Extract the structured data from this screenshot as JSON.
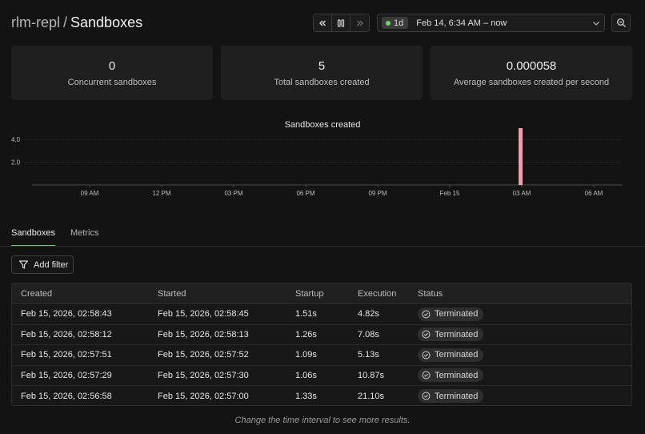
{
  "header": {
    "project": "rlm-repl",
    "separator": "/",
    "page_title": "Sandboxes"
  },
  "time_range": {
    "preset": "1d",
    "label": "Feb 14, 6:34 AM – now",
    "live_color": "#6dd66d"
  },
  "stats": [
    {
      "value": "0",
      "label": "Concurrent sandboxes"
    },
    {
      "value": "5",
      "label": "Total sandboxes created"
    },
    {
      "value": "0.000058",
      "label": "Average sandboxes created per second"
    }
  ],
  "chart_data": {
    "type": "bar",
    "title": "Sandboxes created",
    "x_tick_labels": [
      "09 AM",
      "12 PM",
      "03 PM",
      "06 PM",
      "09 PM",
      "Feb 15",
      "03 AM",
      "06 AM"
    ],
    "y_tick_labels": [
      "4.0",
      "2.0"
    ],
    "y_ticks": [
      4.0,
      2.0
    ],
    "ylim": [
      0,
      5
    ],
    "x_domain_hours": [
      6.6,
      31.2
    ],
    "bars": [
      {
        "x_hours": 26.95,
        "value": 5
      }
    ],
    "bar_color": "#e8a0b2",
    "grid": true
  },
  "tabs": [
    {
      "label": "Sandboxes",
      "active": true
    },
    {
      "label": "Metrics",
      "active": false
    }
  ],
  "filter": {
    "label": "Add filter"
  },
  "table": {
    "columns": [
      "Created",
      "Started",
      "Startup",
      "Execution",
      "Status"
    ],
    "rows": [
      {
        "created": "Feb 15, 2026, 02:58:43",
        "started": "Feb 15, 2026, 02:58:45",
        "startup": "1.51s",
        "execution": "4.82s",
        "status": "Terminated"
      },
      {
        "created": "Feb 15, 2026, 02:58:12",
        "started": "Feb 15, 2026, 02:58:13",
        "startup": "1.26s",
        "execution": "7.08s",
        "status": "Terminated"
      },
      {
        "created": "Feb 15, 2026, 02:57:51",
        "started": "Feb 15, 2026, 02:57:52",
        "startup": "1.09s",
        "execution": "5.13s",
        "status": "Terminated"
      },
      {
        "created": "Feb 15, 2026, 02:57:29",
        "started": "Feb 15, 2026, 02:57:30",
        "startup": "1.06s",
        "execution": "10.87s",
        "status": "Terminated"
      },
      {
        "created": "Feb 15, 2026, 02:56:58",
        "started": "Feb 15, 2026, 02:57:00",
        "startup": "1.33s",
        "execution": "21.10s",
        "status": "Terminated"
      }
    ]
  },
  "footer_note": "Change the time interval to see more results."
}
